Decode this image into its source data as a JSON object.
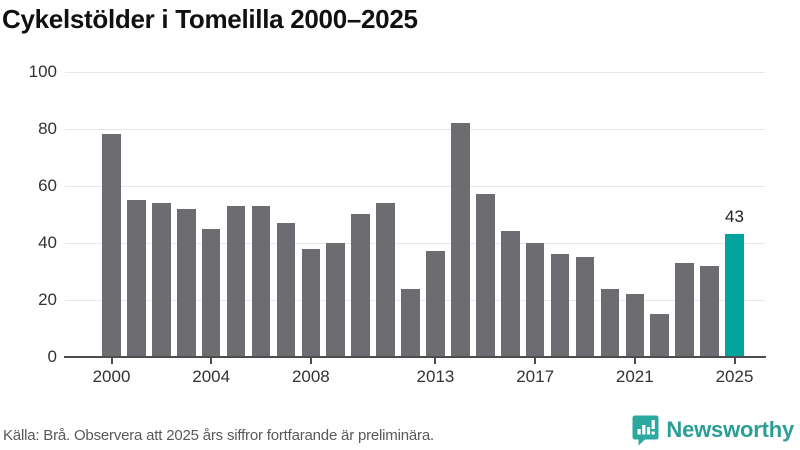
{
  "title": "Cykelstölder i Tomelilla 2000–2025",
  "footer": {
    "source_note": "Källa: Brå. Observera att 2025 års siffror fortfarande är preliminära."
  },
  "branding": {
    "name": "Newsworthy",
    "logo_icon": "speech-bubble-bar-chart-icon"
  },
  "colors": {
    "bar": "#6c6c71",
    "highlight": "#00a49c",
    "axis": "#4d4d4d",
    "grid": "#e7e7e7",
    "title_text": "#111111",
    "tick_text": "#333333",
    "muted_text": "#58595b",
    "brand_teal": "#2b9e97"
  },
  "chart_data": {
    "type": "bar",
    "title": "Cykelstölder i Tomelilla 2000–2025",
    "x": [
      2000,
      2001,
      2002,
      2003,
      2004,
      2005,
      2006,
      2007,
      2008,
      2009,
      2010,
      2011,
      2012,
      2013,
      2014,
      2015,
      2016,
      2017,
      2018,
      2019,
      2020,
      2021,
      2022,
      2023,
      2024,
      2025
    ],
    "values": [
      78,
      55,
      54,
      52,
      45,
      53,
      53,
      47,
      38,
      40,
      50,
      54,
      24,
      37,
      82,
      57,
      44,
      40,
      36,
      35,
      24,
      22,
      15,
      33,
      32,
      43
    ],
    "highlight_index": 25,
    "highlight_label": "43",
    "x_tick_labels": [
      "2000",
      "2004",
      "2008",
      "2013",
      "2017",
      "2021",
      "2025"
    ],
    "y_ticks": [
      0,
      20,
      40,
      60,
      80,
      100
    ],
    "ylim": [
      0,
      100
    ],
    "xlabel": "",
    "ylabel": "",
    "grid": "horizontal",
    "legend": "none"
  }
}
